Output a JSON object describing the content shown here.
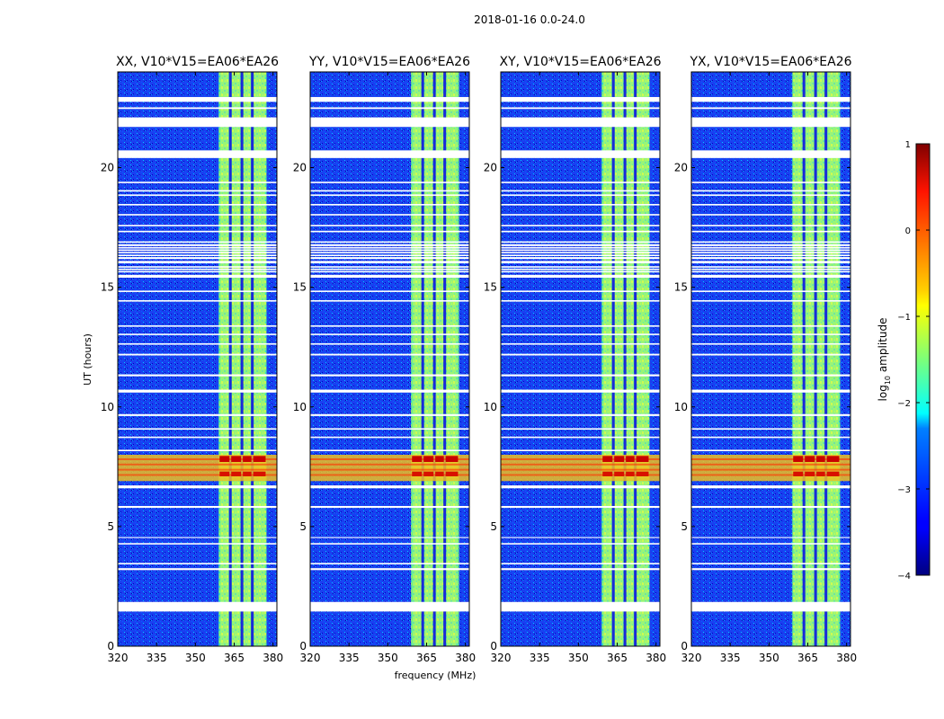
{
  "suptitle": "2018-01-16 0.0-24.0",
  "chart_data": {
    "type": "heatmap",
    "xlabel": "frequency (MHz)",
    "ylabel": "UT (hours)",
    "xlim": [
      320,
      381.5
    ],
    "ylim": [
      0,
      24
    ],
    "xticks": [
      320,
      335,
      350,
      365,
      380
    ],
    "yticks": [
      0,
      5,
      10,
      15,
      20
    ],
    "panels": [
      {
        "title": "XX, V10*V15=EA06*EA26"
      },
      {
        "title": "YY, V10*V15=EA06*EA26"
      },
      {
        "title": "XY, V10*V15=EA06*EA26"
      },
      {
        "title": "YX, V10*V15=EA06*EA26"
      }
    ],
    "signal_band_mhz": [
      359,
      377.5
    ],
    "signal_subband_edges_mhz": [
      359,
      363.5,
      368,
      372,
      377.5
    ],
    "rfi_burst_hours": [
      6.9,
      8.0
    ],
    "flagged_rows_hours": [
      [
        1.45,
        1.85
      ],
      [
        3.18,
        3.26
      ],
      [
        3.42,
        3.48
      ],
      [
        4.25,
        4.31
      ],
      [
        4.52,
        4.56
      ],
      [
        5.78,
        5.86
      ],
      [
        6.6,
        6.72
      ],
      [
        8.15,
        8.21
      ],
      [
        8.7,
        8.76
      ],
      [
        9.05,
        9.11
      ],
      [
        9.62,
        9.7
      ],
      [
        10.6,
        10.72
      ],
      [
        11.28,
        11.36
      ],
      [
        12.15,
        12.22
      ],
      [
        12.6,
        12.66
      ],
      [
        13.0,
        13.06
      ],
      [
        13.35,
        13.41
      ],
      [
        14.4,
        14.46
      ],
      [
        14.8,
        14.86
      ],
      [
        15.4,
        15.52
      ],
      [
        15.62,
        15.68
      ],
      [
        15.72,
        15.78
      ],
      [
        15.82,
        15.88
      ],
      [
        16.0,
        16.1
      ],
      [
        16.18,
        16.26
      ],
      [
        16.3,
        16.36
      ],
      [
        16.42,
        16.48
      ],
      [
        16.52,
        16.58
      ],
      [
        16.62,
        16.68
      ],
      [
        16.72,
        16.8
      ],
      [
        16.86,
        16.92
      ],
      [
        17.3,
        17.36
      ],
      [
        17.55,
        17.61
      ],
      [
        18.0,
        18.06
      ],
      [
        18.42,
        18.48
      ],
      [
        18.82,
        18.88
      ],
      [
        19.0,
        19.06
      ],
      [
        19.35,
        19.41
      ],
      [
        20.4,
        20.72
      ],
      [
        21.7,
        22.1
      ],
      [
        22.45,
        22.52
      ],
      [
        22.75,
        22.95
      ]
    ],
    "colorbar": {
      "label": "log10 amplitude",
      "label_main": "log",
      "label_sub": "10",
      "label_rest": " amplitude",
      "range": [
        -4,
        1
      ],
      "ticks": [
        "1",
        "0",
        "−1",
        "−2",
        "−3",
        "−4"
      ],
      "colormap": "jet"
    }
  }
}
